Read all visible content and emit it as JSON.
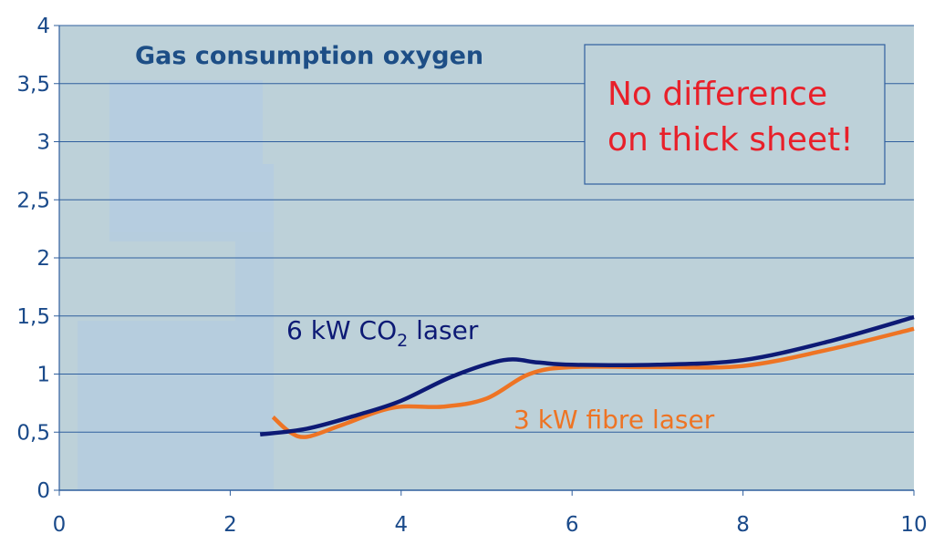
{
  "chart_data": {
    "type": "line",
    "title": "Gas consumption oxygen",
    "xlabel": "",
    "ylabel": "",
    "xlim": [
      0,
      10
    ],
    "ylim": [
      0,
      4
    ],
    "x_ticks": [
      "0",
      "2",
      "4",
      "6",
      "8",
      "10"
    ],
    "y_ticks": [
      "0",
      "0,5",
      "1",
      "1,5",
      "2",
      "2,5",
      "3",
      "3,5",
      "4"
    ],
    "grid": true,
    "series": [
      {
        "name": "6 kW CO2 laser",
        "label_main": "6 kW CO",
        "label_sub": "2",
        "label_tail": " laser",
        "color": "#0d1a75",
        "x": [
          2.35,
          2.9,
          3.5,
          4.0,
          4.6,
          5.2,
          5.6,
          6.0,
          7.0,
          8.0,
          9.0,
          10.0
        ],
        "y": [
          0.48,
          0.53,
          0.65,
          0.77,
          0.98,
          1.12,
          1.1,
          1.08,
          1.08,
          1.12,
          1.28,
          1.49
        ]
      },
      {
        "name": "3 kW fibre laser",
        "color": "#ee7424",
        "x": [
          2.5,
          2.7,
          2.9,
          3.3,
          3.9,
          4.5,
          5.0,
          5.5,
          6.0,
          7.0,
          8.0,
          9.0,
          10.0
        ],
        "y": [
          0.63,
          0.5,
          0.46,
          0.56,
          0.71,
          0.72,
          0.79,
          1.0,
          1.06,
          1.06,
          1.07,
          1.21,
          1.39
        ]
      }
    ],
    "annotation": {
      "line1": "No difference",
      "line2": "on thick sheet!",
      "color": "#e8202a"
    },
    "colors": {
      "plot_background": "#bdd1d9",
      "grid": "#2f5f9e",
      "axis_text": "#1a4a8a",
      "faded_block": "#b5cde0"
    }
  }
}
